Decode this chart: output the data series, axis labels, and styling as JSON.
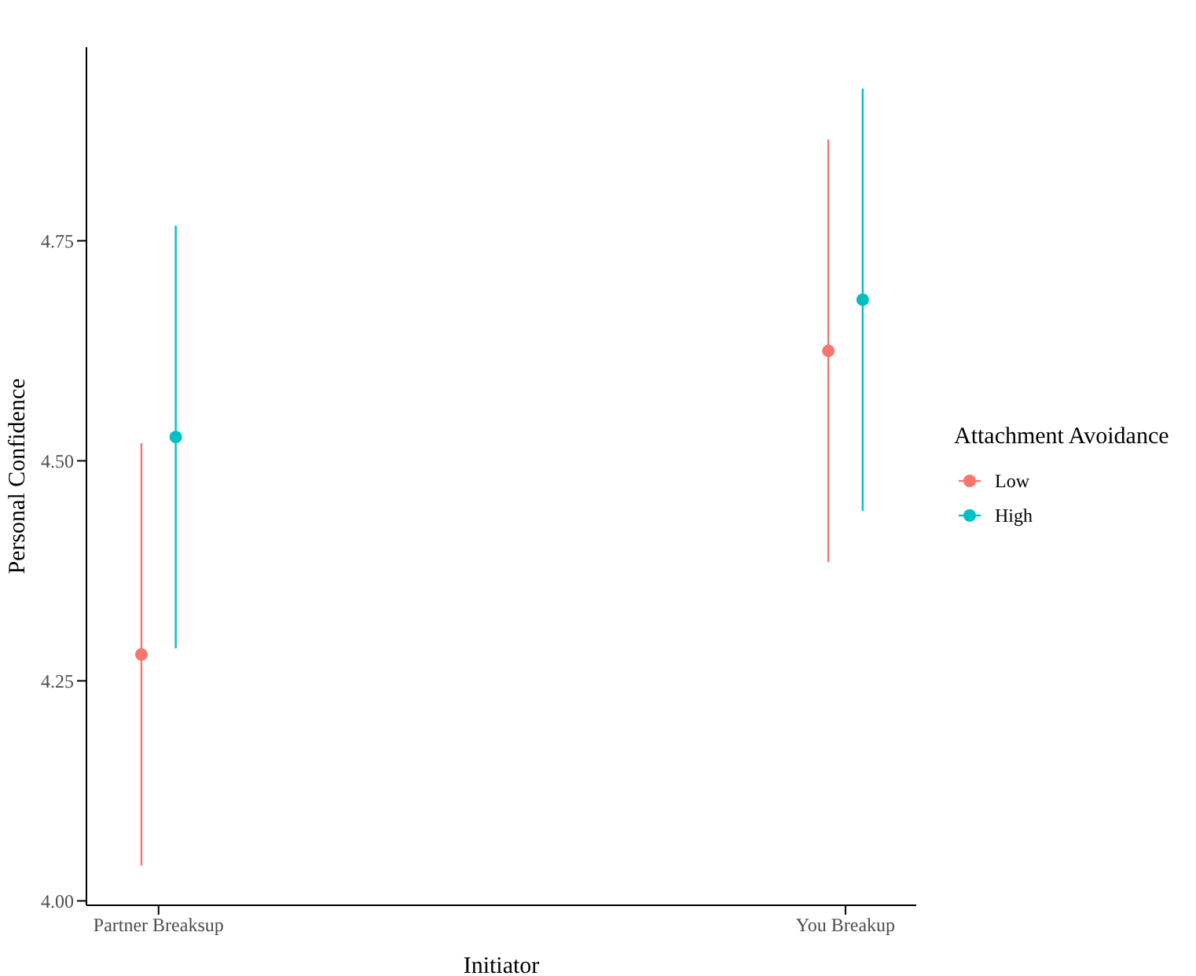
{
  "chart_data": {
    "type": "scatter",
    "xlabel": "Initiator",
    "ylabel": "Personal Confidence",
    "legend_title": "Attachment Avoidance",
    "categories": [
      "Partner Breaksup",
      "You Breakup"
    ],
    "series": [
      {
        "name": "Low",
        "color": "#f8766d",
        "values": [
          4.28,
          4.625
        ],
        "errors": [
          0.24,
          0.24
        ]
      },
      {
        "name": "High",
        "color": "#00bfc4",
        "values": [
          4.527,
          4.683
        ],
        "errors": [
          0.24,
          0.24
        ]
      }
    ],
    "ylim": [
      3.995,
      4.97
    ],
    "yticks": [
      {
        "value": 4,
        "label": "4.00"
      },
      {
        "value": 4.25,
        "label": "4.25"
      },
      {
        "value": 4.5,
        "label": "4.50"
      },
      {
        "value": 4.75,
        "label": "4.75"
      }
    ],
    "grid": false,
    "legend": "right",
    "marker": "circle"
  }
}
